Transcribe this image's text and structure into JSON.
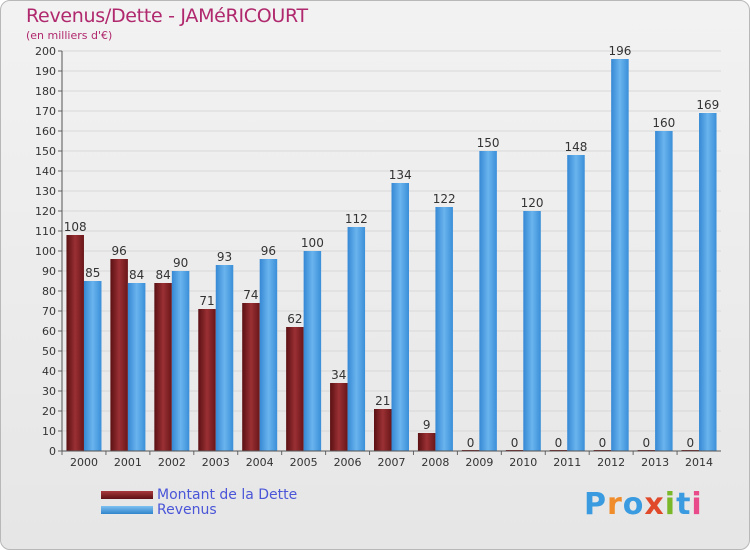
{
  "colors": {
    "dette": "#7a1f22",
    "revenus": "#3d96dc",
    "title": "#b0286d",
    "legend_text": "#4a55d8",
    "grid": "#d8d8d8",
    "logo": [
      "#3a9be0",
      "#f08c2a",
      "#3a9be0",
      "#e04a2a",
      "#7ab82a",
      "#3a9be0",
      "#e84a8a"
    ]
  },
  "chart_data": {
    "type": "bar",
    "title": "Revenus/Dette - JAMéRICOURT",
    "subtitle": "(en milliers d'€)",
    "categories": [
      "2000",
      "2001",
      "2002",
      "2003",
      "2004",
      "2005",
      "2006",
      "2007",
      "2008",
      "2009",
      "2010",
      "2011",
      "2012",
      "2013",
      "2014"
    ],
    "series": [
      {
        "name": "Montant de la Dette",
        "values": [
          108,
          96,
          84,
          71,
          74,
          62,
          34,
          21,
          9,
          0,
          0,
          0,
          0,
          0,
          0
        ]
      },
      {
        "name": "Revenus",
        "values": [
          85,
          84,
          90,
          93,
          96,
          100,
          112,
          134,
          122,
          150,
          120,
          148,
          196,
          160,
          169
        ]
      }
    ],
    "ylim": [
      0,
      200
    ],
    "ytick_step": 10,
    "grid": true,
    "legend_position": "bottom-left"
  },
  "logo": {
    "text": "Proxiti",
    "letters": [
      "P",
      "r",
      "o",
      "x",
      "i",
      "t",
      "i"
    ]
  }
}
